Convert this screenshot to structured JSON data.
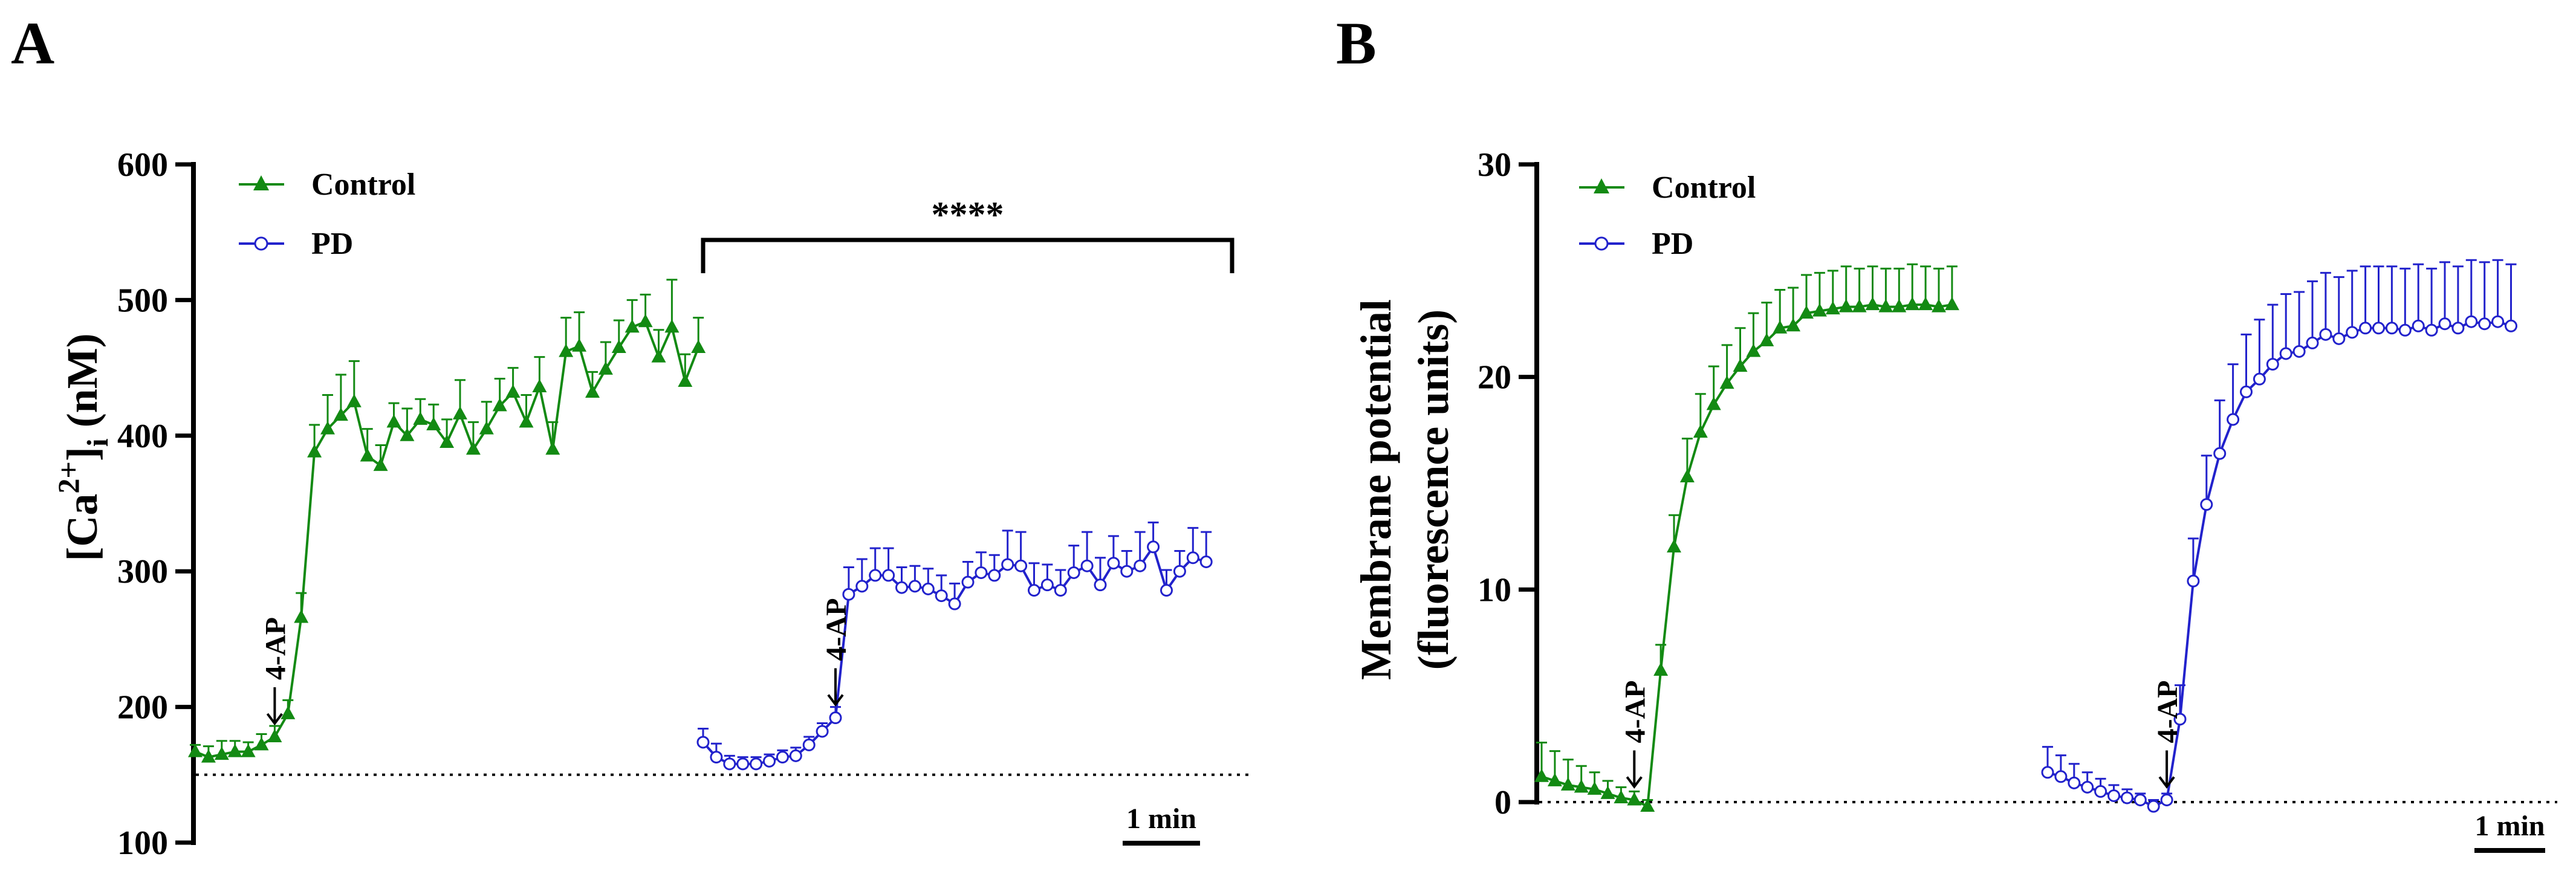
{
  "panels": {
    "a": {
      "letter": "A"
    },
    "b": {
      "letter": "B"
    }
  },
  "colors": {
    "control": "#138a13",
    "pd": "#2222cc",
    "axis": "#000000"
  },
  "chart_data": [
    {
      "id": "A",
      "type": "line",
      "ylabel_base": "[Ca",
      "ylabel_sup": "2+",
      "ylabel_mid": "]",
      "ylabel_sub": "i",
      "ylabel_end": " (nM)",
      "xlabel": "",
      "ylim": [
        100,
        600
      ],
      "yticks": [
        100,
        200,
        300,
        400,
        500,
        600
      ],
      "baseline": 150,
      "grid": false,
      "legend_position": "top-left",
      "scale_bar_label": "1 min",
      "significance": "****",
      "stimulus_label": "4-AP",
      "series": [
        {
          "name": "Control",
          "marker": "triangle",
          "values": [
            167,
            163,
            165,
            167,
            167,
            172,
            178,
            195,
            266,
            388,
            405,
            415,
            425,
            385,
            378,
            410,
            400,
            412,
            408,
            395,
            416,
            390,
            405,
            422,
            432,
            410,
            436,
            390,
            462,
            466,
            432,
            449,
            465,
            480,
            484,
            458,
            480,
            440,
            465
          ],
          "errors": [
            5,
            8,
            10,
            8,
            7,
            8,
            8,
            10,
            18,
            20,
            25,
            30,
            30,
            20,
            15,
            14,
            20,
            15,
            15,
            17,
            25,
            20,
            20,
            20,
            18,
            20,
            22,
            20,
            25,
            25,
            15,
            20,
            20,
            20,
            20,
            20,
            35,
            20,
            22
          ]
        },
        {
          "name": "PD",
          "marker": "circle",
          "values": [
            174,
            163,
            158,
            158,
            158,
            160,
            163,
            164,
            172,
            182,
            192,
            283,
            289,
            297,
            297,
            288,
            289,
            287,
            282,
            276,
            292,
            299,
            297,
            305,
            304,
            286,
            290,
            286,
            299,
            304,
            290,
            306,
            300,
            304,
            318,
            286,
            300,
            310,
            307
          ],
          "errors": [
            10,
            10,
            6,
            5,
            5,
            5,
            5,
            6,
            6,
            6,
            8,
            20,
            20,
            20,
            20,
            15,
            15,
            15,
            15,
            15,
            15,
            15,
            15,
            25,
            25,
            20,
            15,
            15,
            20,
            25,
            20,
            20,
            15,
            25,
            18,
            15,
            15,
            22,
            22
          ]
        }
      ],
      "stimulus_index": [
        6,
        10
      ]
    },
    {
      "id": "B",
      "type": "line",
      "ylabel_line1": "Membrane potential",
      "ylabel_line2": "(fluorescence units)",
      "xlabel": "",
      "ylim": [
        0,
        30
      ],
      "yticks": [
        0,
        10,
        20,
        30
      ],
      "baseline": 0,
      "grid": false,
      "legend_position": "top-left",
      "scale_bar_label": "1 min",
      "stimulus_label": "4-AP",
      "series": [
        {
          "name": "Control",
          "marker": "triangle",
          "values": [
            1.2,
            1.0,
            0.8,
            0.7,
            0.6,
            0.4,
            0.2,
            0.1,
            -0.2,
            6.2,
            12.0,
            15.3,
            17.4,
            18.7,
            19.7,
            20.5,
            21.2,
            21.7,
            22.3,
            22.4,
            23.0,
            23.1,
            23.2,
            23.3,
            23.3,
            23.4,
            23.3,
            23.3,
            23.4,
            23.4,
            23.3,
            23.4
          ],
          "errors": [
            1.6,
            1.4,
            1.2,
            1.0,
            0.8,
            0.6,
            0.5,
            0.4,
            0.3,
            1.2,
            1.5,
            1.8,
            1.8,
            1.8,
            1.8,
            1.8,
            1.8,
            1.8,
            1.8,
            1.8,
            1.8,
            1.8,
            1.8,
            1.9,
            1.8,
            1.8,
            1.8,
            1.8,
            1.9,
            1.8,
            1.8,
            1.8
          ]
        },
        {
          "name": "PD",
          "marker": "circle",
          "values": [
            1.4,
            1.2,
            0.9,
            0.7,
            0.5,
            0.3,
            0.2,
            0.1,
            -0.2,
            0.1,
            3.9,
            10.4,
            14.0,
            16.4,
            18.0,
            19.3,
            19.9,
            20.6,
            21.1,
            21.2,
            21.6,
            22.0,
            21.8,
            22.1,
            22.3,
            22.3,
            22.3,
            22.2,
            22.4,
            22.2,
            22.5,
            22.3,
            22.6,
            22.5,
            22.6,
            22.4
          ],
          "errors": [
            1.2,
            1.0,
            0.9,
            0.7,
            0.6,
            0.5,
            0.4,
            0.3,
            0.3,
            0.3,
            1.6,
            2.0,
            2.3,
            2.5,
            2.6,
            2.7,
            2.8,
            2.8,
            2.8,
            2.8,
            2.9,
            2.9,
            2.9,
            2.9,
            2.9,
            2.9,
            2.9,
            2.9,
            2.9,
            2.9,
            2.9,
            2.9,
            2.9,
            2.9,
            2.9,
            2.9
          ]
        }
      ],
      "stimulus_index": [
        7,
        9
      ]
    }
  ]
}
